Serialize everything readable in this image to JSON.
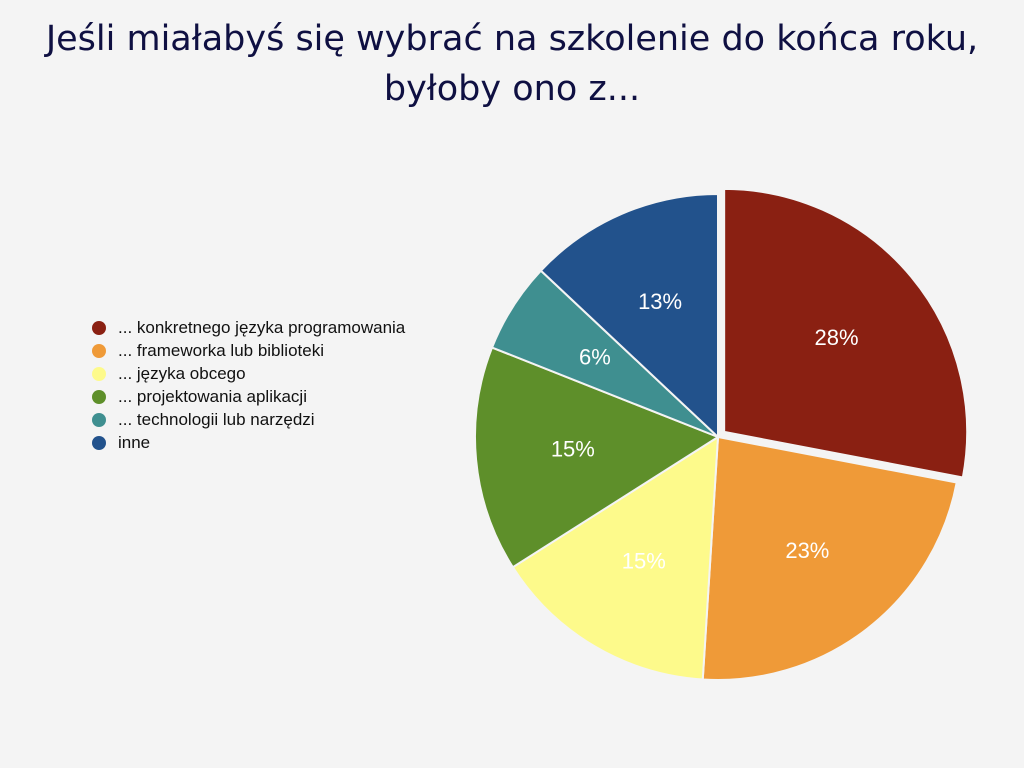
{
  "title": {
    "line1": "Jeśli miałabyś się wybrać na szkolenie do końca roku,",
    "line2": "byłoby ono z..."
  },
  "chart_data": {
    "type": "pie",
    "title": "Jeśli miałabyś się wybrać na szkolenie do końca roku, byłoby ono z...",
    "legend_position": "left",
    "slices": [
      {
        "label": "... konkretnego języka programowania",
        "value": 28,
        "value_label": "28%",
        "color": "#8a2012",
        "exploded": true
      },
      {
        "label": "... frameworka lub biblioteki",
        "value": 23,
        "value_label": "23%",
        "color": "#ef9a38"
      },
      {
        "label": "... języka obcego",
        "value": 15,
        "value_label": "15%",
        "color": "#fdfa8b"
      },
      {
        "label": "... projektowania aplikacji",
        "value": 15,
        "value_label": "15%",
        "color": "#5e8f2a"
      },
      {
        "label": "... technologii lub narzędzi",
        "value": 6,
        "value_label": "6%",
        "color": "#3f8f90"
      },
      {
        "label": "inne",
        "value": 13,
        "value_label": "13%",
        "color": "#22528c"
      }
    ]
  }
}
